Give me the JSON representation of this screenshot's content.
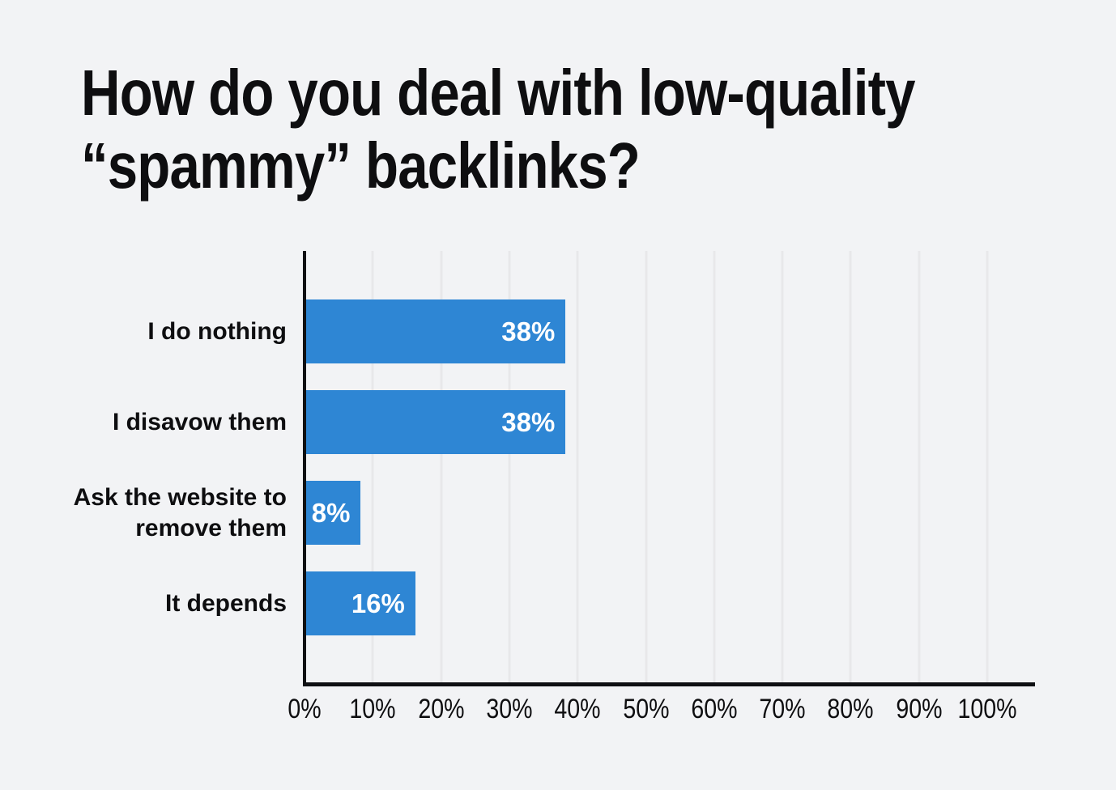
{
  "colors": {
    "background": "#f2f3f5",
    "bar": "#2e86d4",
    "value_label": "#ffffff",
    "axis": "#0f1013",
    "gridline": "#e8e8ea",
    "text": "#0e0e10"
  },
  "header": {
    "title_line1": "How do you deal with low-quality",
    "title_line2": "“spammy” backlinks?"
  },
  "chart_data": {
    "type": "bar",
    "orientation": "horizontal",
    "title": "How do you deal with low-quality “spammy” backlinks?",
    "categories": [
      "I do nothing",
      "I disavow them",
      "Ask the website to remove them",
      "It depends"
    ],
    "values": [
      38,
      38,
      8,
      16
    ],
    "value_labels": [
      "38%",
      "38%",
      "8%",
      "16%"
    ],
    "xlabel": "",
    "ylabel": "",
    "xlim": [
      0,
      100
    ],
    "x_ticks": [
      "0%",
      "10%",
      "20%",
      "30%",
      "40%",
      "50%",
      "60%",
      "70%",
      "80%",
      "90%",
      "100%"
    ],
    "grid": "vertical-only",
    "legend": "none",
    "value_labels_position": "inside-end"
  }
}
